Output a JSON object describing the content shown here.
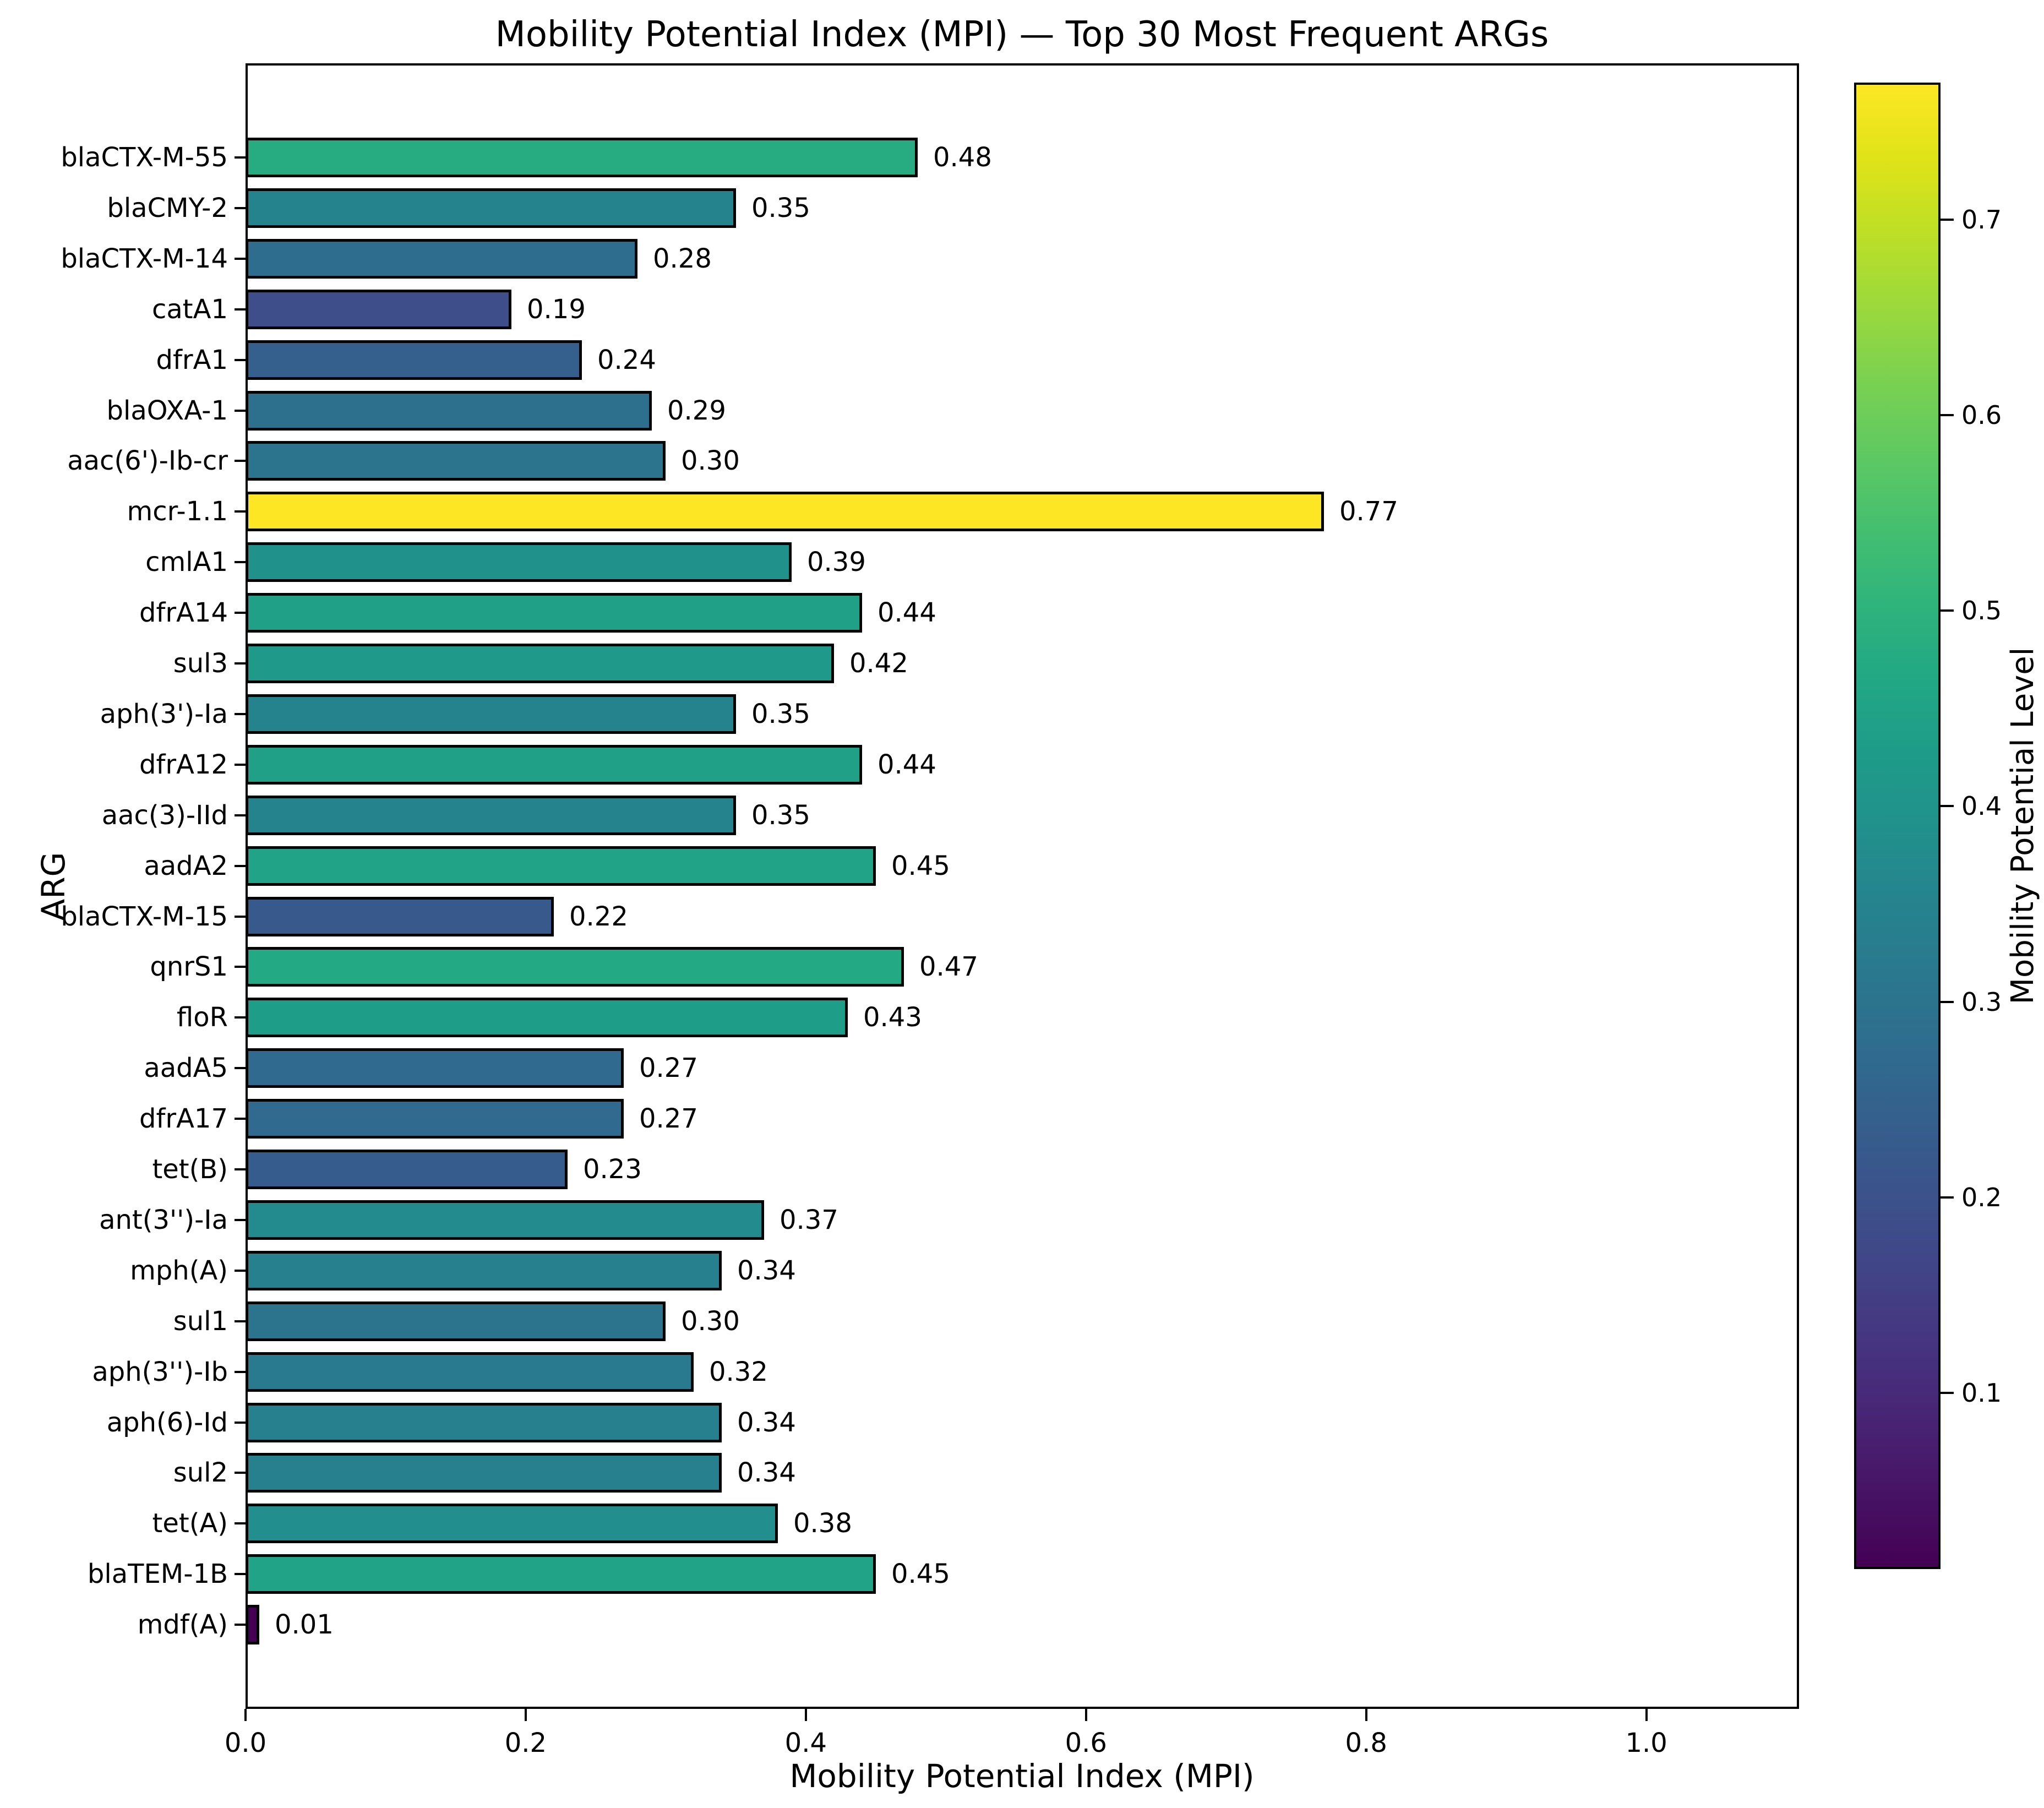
{
  "title": "Mobility Potential Index (MPI) — Top 30 Most Frequent ARGs",
  "chart_data": {
    "type": "bar",
    "orientation": "horizontal",
    "title": "Mobility Potential Index (MPI) — Top 30 Most Frequent ARGs",
    "xlabel": "Mobility Potential Index (MPI)",
    "ylabel": "ARG",
    "xlim": [
      0.0,
      1.109
    ],
    "x_ticks": [
      0.0,
      0.2,
      0.4,
      0.6,
      0.8,
      1.0
    ],
    "grid": false,
    "categories": [
      "blaCTX-M-55",
      "blaCMY-2",
      "blaCTX-M-14",
      "catA1",
      "dfrA1",
      "blaOXA-1",
      "aac(6')-Ib-cr",
      "mcr-1.1",
      "cmlA1",
      "dfrA14",
      "sul3",
      "aph(3')-Ia",
      "dfrA12",
      "aac(3)-IId",
      "aadA2",
      "blaCTX-M-15",
      "qnrS1",
      "floR",
      "aadA5",
      "dfrA17",
      "tet(B)",
      "ant(3'')-Ia",
      "mph(A)",
      "sul1",
      "aph(3'')-Ib",
      "aph(6)-Id",
      "sul2",
      "tet(A)",
      "blaTEM-1B",
      "mdf(A)"
    ],
    "values": [
      0.48,
      0.35,
      0.28,
      0.19,
      0.24,
      0.29,
      0.3,
      0.77,
      0.39,
      0.44,
      0.42,
      0.35,
      0.44,
      0.35,
      0.45,
      0.22,
      0.47,
      0.43,
      0.27,
      0.27,
      0.23,
      0.37,
      0.34,
      0.3,
      0.32,
      0.34,
      0.34,
      0.38,
      0.45,
      0.01
    ],
    "value_label_decimals": 2,
    "colormap": "viridis",
    "color_norm": [
      0.01,
      0.77
    ],
    "colorbar": {
      "label": "Mobility Potential Level",
      "ticks": [
        0.7,
        0.6,
        0.5,
        0.4,
        0.3,
        0.2,
        0.1
      ],
      "tick_decimals": 1
    },
    "bar_edge_color": "#000000",
    "max_bar_color": "#fde725",
    "min_bar_color": "#440154"
  }
}
